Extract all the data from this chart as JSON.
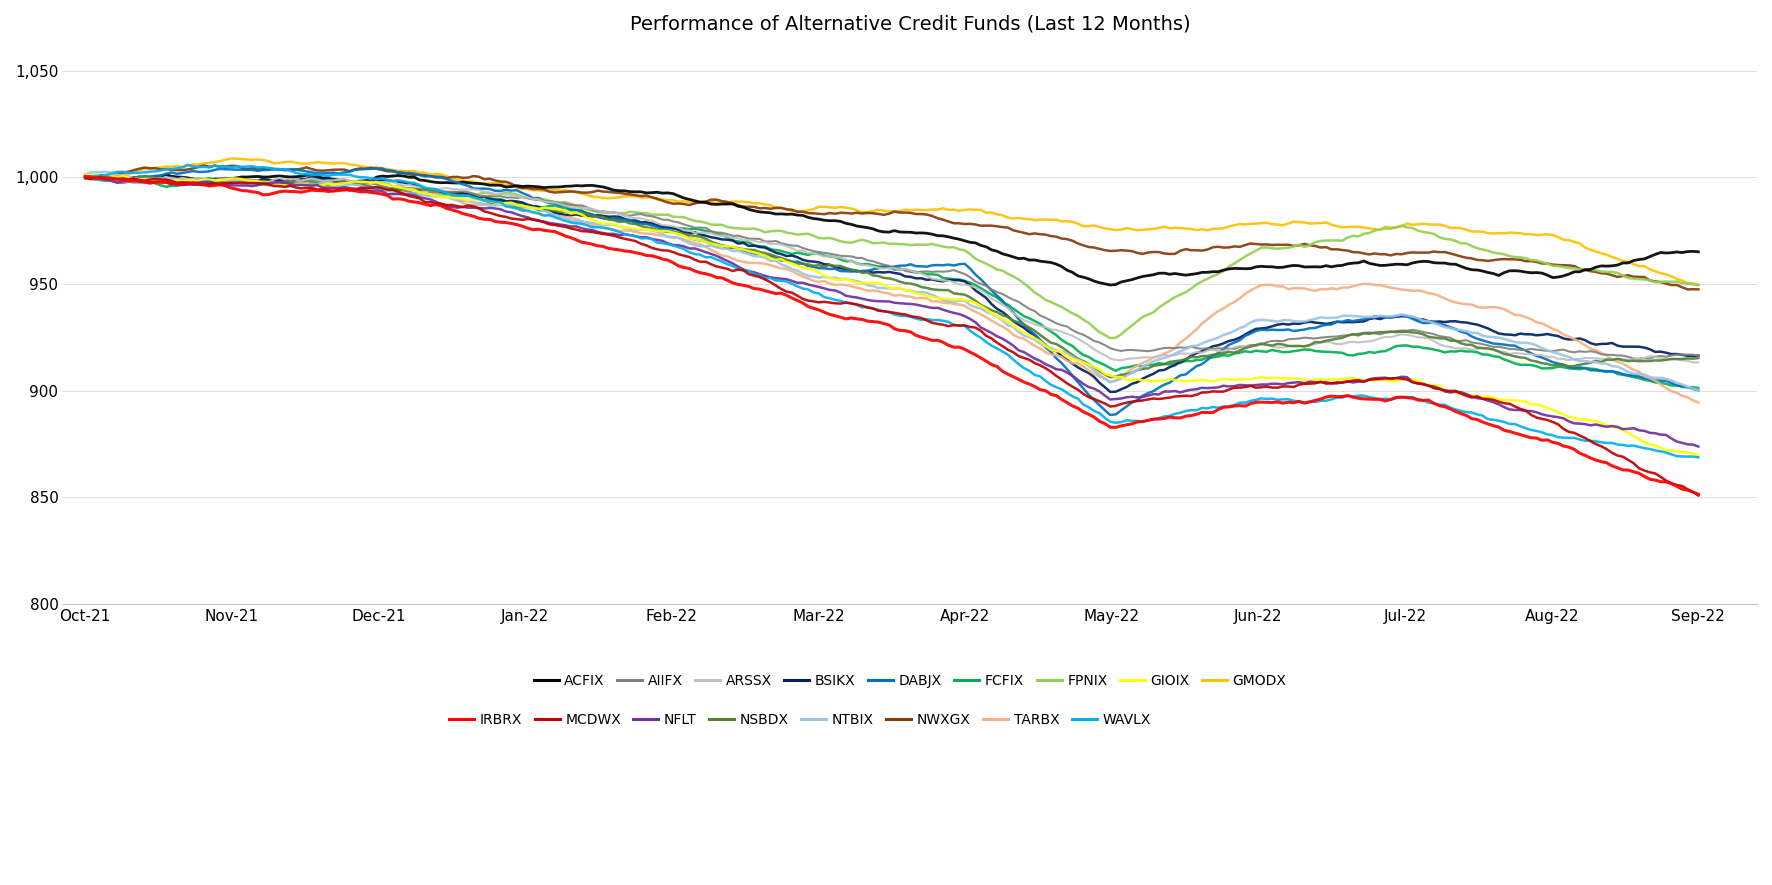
{
  "title": "Performance of Alternative Credit Funds (Last 12 Months)",
  "x_labels": [
    "Oct-21",
    "Nov-21",
    "Dec-21",
    "Jan-22",
    "Feb-22",
    "Mar-22",
    "Apr-22",
    "May-22",
    "Jun-22",
    "Jul-22",
    "Aug-22",
    "Sep-22"
  ],
  "ylim": [
    800,
    1060
  ],
  "yticks": [
    800,
    850,
    900,
    950,
    1000,
    1050
  ],
  "ytick_labels": [
    "800",
    "850",
    "900",
    "950",
    "1,000",
    "1,050"
  ],
  "series": {
    "GMODX": {
      "color": "#ffc000",
      "lw": 1.8,
      "keyvals": [
        1000,
        1008,
        1005,
        995,
        990,
        985,
        985,
        975,
        978,
        978,
        972,
        950
      ]
    },
    "NWXGX": {
      "color": "#843c0c",
      "lw": 1.8,
      "keyvals": [
        1000,
        1005,
        1003,
        996,
        990,
        984,
        980,
        965,
        968,
        965,
        960,
        948
      ]
    },
    "ACFIX": {
      "color": "#000000",
      "lw": 2.0,
      "keyvals": [
        1000,
        999,
        1000,
        996,
        992,
        980,
        970,
        950,
        958,
        960,
        955,
        965
      ]
    },
    "FPNIX": {
      "color": "#92d050",
      "lw": 1.8,
      "keyvals": [
        1000,
        999,
        997,
        990,
        982,
        972,
        965,
        925,
        967,
        975,
        960,
        950
      ]
    },
    "FCFIX": {
      "color": "#00b050",
      "lw": 1.8,
      "keyvals": [
        1000,
        998,
        995,
        988,
        978,
        962,
        952,
        910,
        917,
        920,
        912,
        902
      ]
    },
    "BSIKX": {
      "color": "#002060",
      "lw": 1.8,
      "keyvals": [
        1000,
        998,
        1000,
        988,
        976,
        960,
        950,
        900,
        930,
        935,
        925,
        917
      ]
    },
    "DABJX": {
      "color": "#0070c0",
      "lw": 1.8,
      "keyvals": [
        1000,
        1003,
        1004,
        992,
        975,
        958,
        960,
        888,
        928,
        935,
        915,
        900
      ]
    },
    "AIIFX": {
      "color": "#808080",
      "lw": 1.5,
      "keyvals": [
        1000,
        998,
        997,
        990,
        978,
        965,
        953,
        918,
        922,
        928,
        918,
        916
      ]
    },
    "ARSSX": {
      "color": "#c0c0c0",
      "lw": 1.5,
      "keyvals": [
        1000,
        999,
        998,
        990,
        978,
        963,
        950,
        915,
        920,
        925,
        915,
        913
      ]
    },
    "NSBDX": {
      "color": "#548235",
      "lw": 1.8,
      "keyvals": [
        1000,
        998,
        996,
        987,
        974,
        958,
        945,
        908,
        920,
        928,
        913,
        915
      ]
    },
    "GIOIX": {
      "color": "#ffff00",
      "lw": 1.8,
      "keyvals": [
        1000,
        998,
        996,
        987,
        974,
        955,
        942,
        906,
        905,
        905,
        892,
        870
      ]
    },
    "TARBX": {
      "color": "#f4b183",
      "lw": 1.8,
      "keyvals": [
        1000,
        997,
        995,
        985,
        971,
        952,
        940,
        902,
        948,
        948,
        930,
        895
      ]
    },
    "NTBIX": {
      "color": "#9dc3e6",
      "lw": 1.8,
      "keyvals": [
        1000,
        998,
        996,
        986,
        973,
        953,
        942,
        904,
        933,
        935,
        918,
        900
      ]
    },
    "NFLT": {
      "color": "#7030a0",
      "lw": 1.8,
      "keyvals": [
        1000,
        997,
        994,
        982,
        968,
        948,
        935,
        896,
        903,
        905,
        888,
        875
      ]
    },
    "WAVLX": {
      "color": "#00b0f0",
      "lw": 1.8,
      "keyvals": [
        1000,
        1004,
        1000,
        985,
        968,
        945,
        930,
        885,
        895,
        898,
        878,
        870
      ]
    },
    "MCDWX": {
      "color": "#c00000",
      "lw": 1.8,
      "keyvals": [
        1000,
        997,
        994,
        980,
        965,
        944,
        930,
        893,
        902,
        906,
        886,
        851
      ]
    },
    "IRBRX": {
      "color": "#ff0000",
      "lw": 2.2,
      "keyvals": [
        1000,
        996,
        993,
        977,
        960,
        938,
        920,
        883,
        895,
        898,
        875,
        851
      ]
    }
  }
}
